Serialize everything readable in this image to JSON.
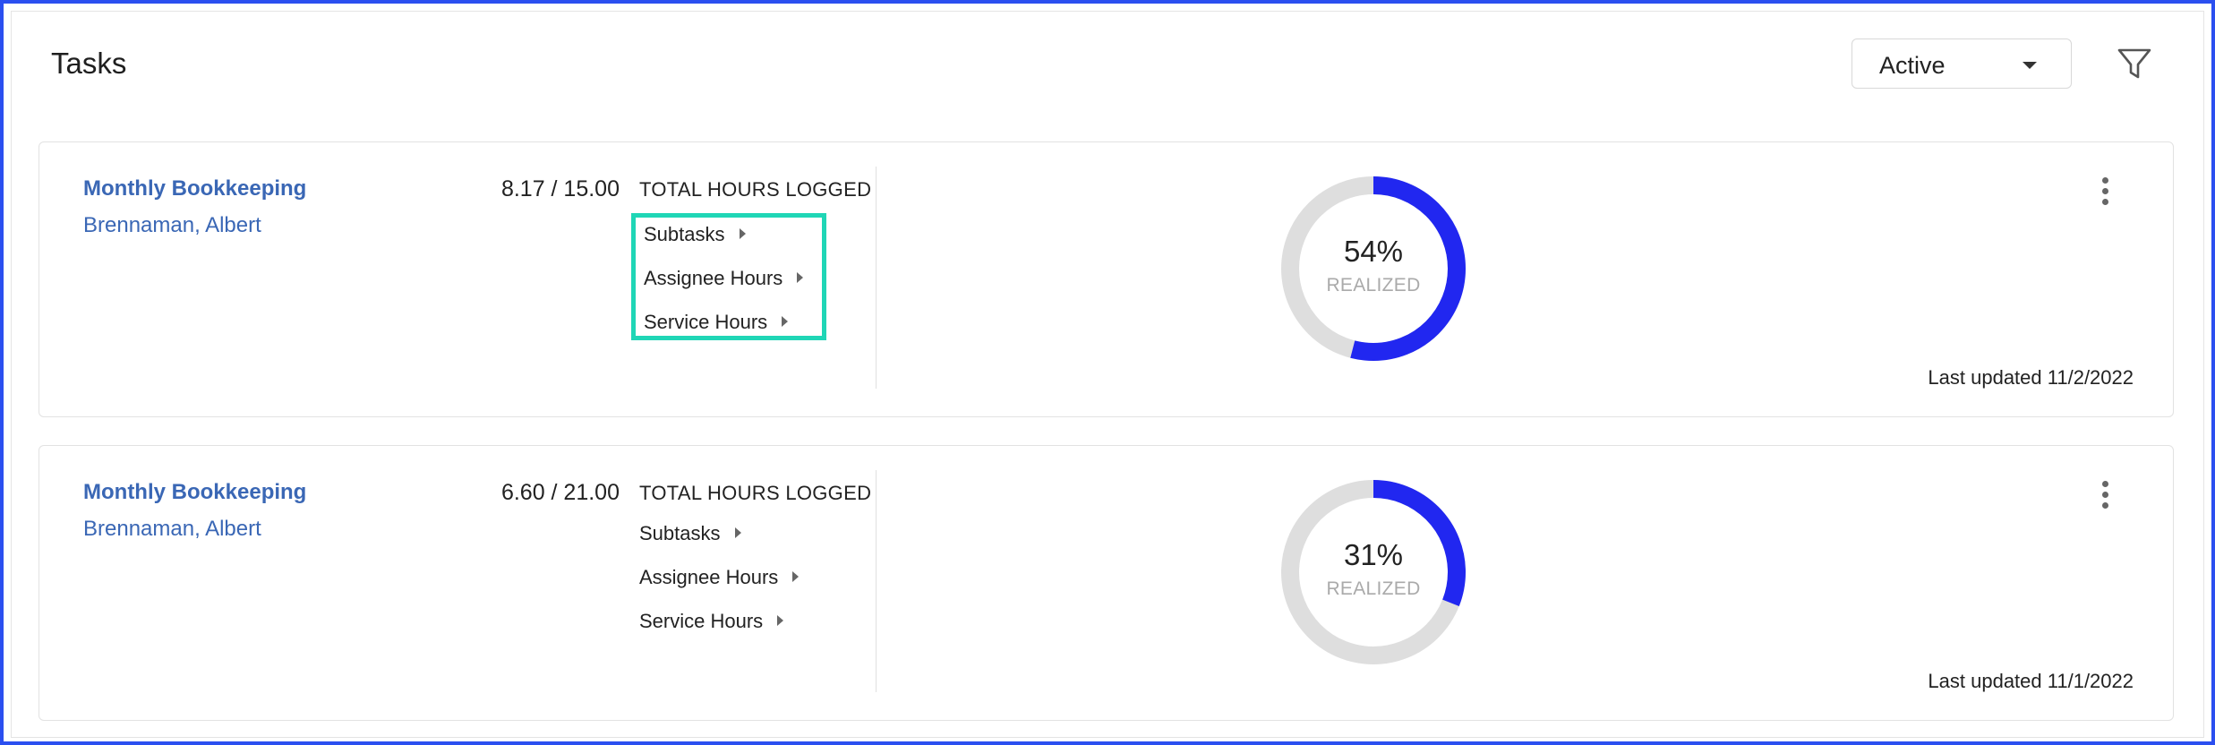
{
  "header": {
    "title": "Tasks",
    "status_select": {
      "value": "Active"
    },
    "filter_icon": "filter-icon"
  },
  "colors": {
    "accent": "#2127f0",
    "link": "#3a67b5",
    "ring_track": "#dedede",
    "highlight": "#1fd6b6"
  },
  "tasks": [
    {
      "name": "Monthly Bookkeeping",
      "assignee": "Brennaman, Albert",
      "hours": "8.17 / 15.00",
      "hours_label": "TOTAL HOURS LOGGED",
      "expanders": [
        "Subtasks",
        "Assignee Hours",
        "Service Hours"
      ],
      "realized_pct": 54,
      "realized_text": "54%",
      "realized_label": "REALIZED",
      "last_updated": "Last updated 11/2/2022"
    },
    {
      "name": "Monthly Bookkeeping",
      "assignee": "Brennaman, Albert",
      "hours": "6.60 / 21.00",
      "hours_label": "TOTAL HOURS LOGGED",
      "expanders": [
        "Subtasks",
        "Assignee Hours",
        "Service Hours"
      ],
      "realized_pct": 31,
      "realized_text": "31%",
      "realized_label": "REALIZED",
      "last_updated": "Last updated 11/1/2022"
    }
  ]
}
